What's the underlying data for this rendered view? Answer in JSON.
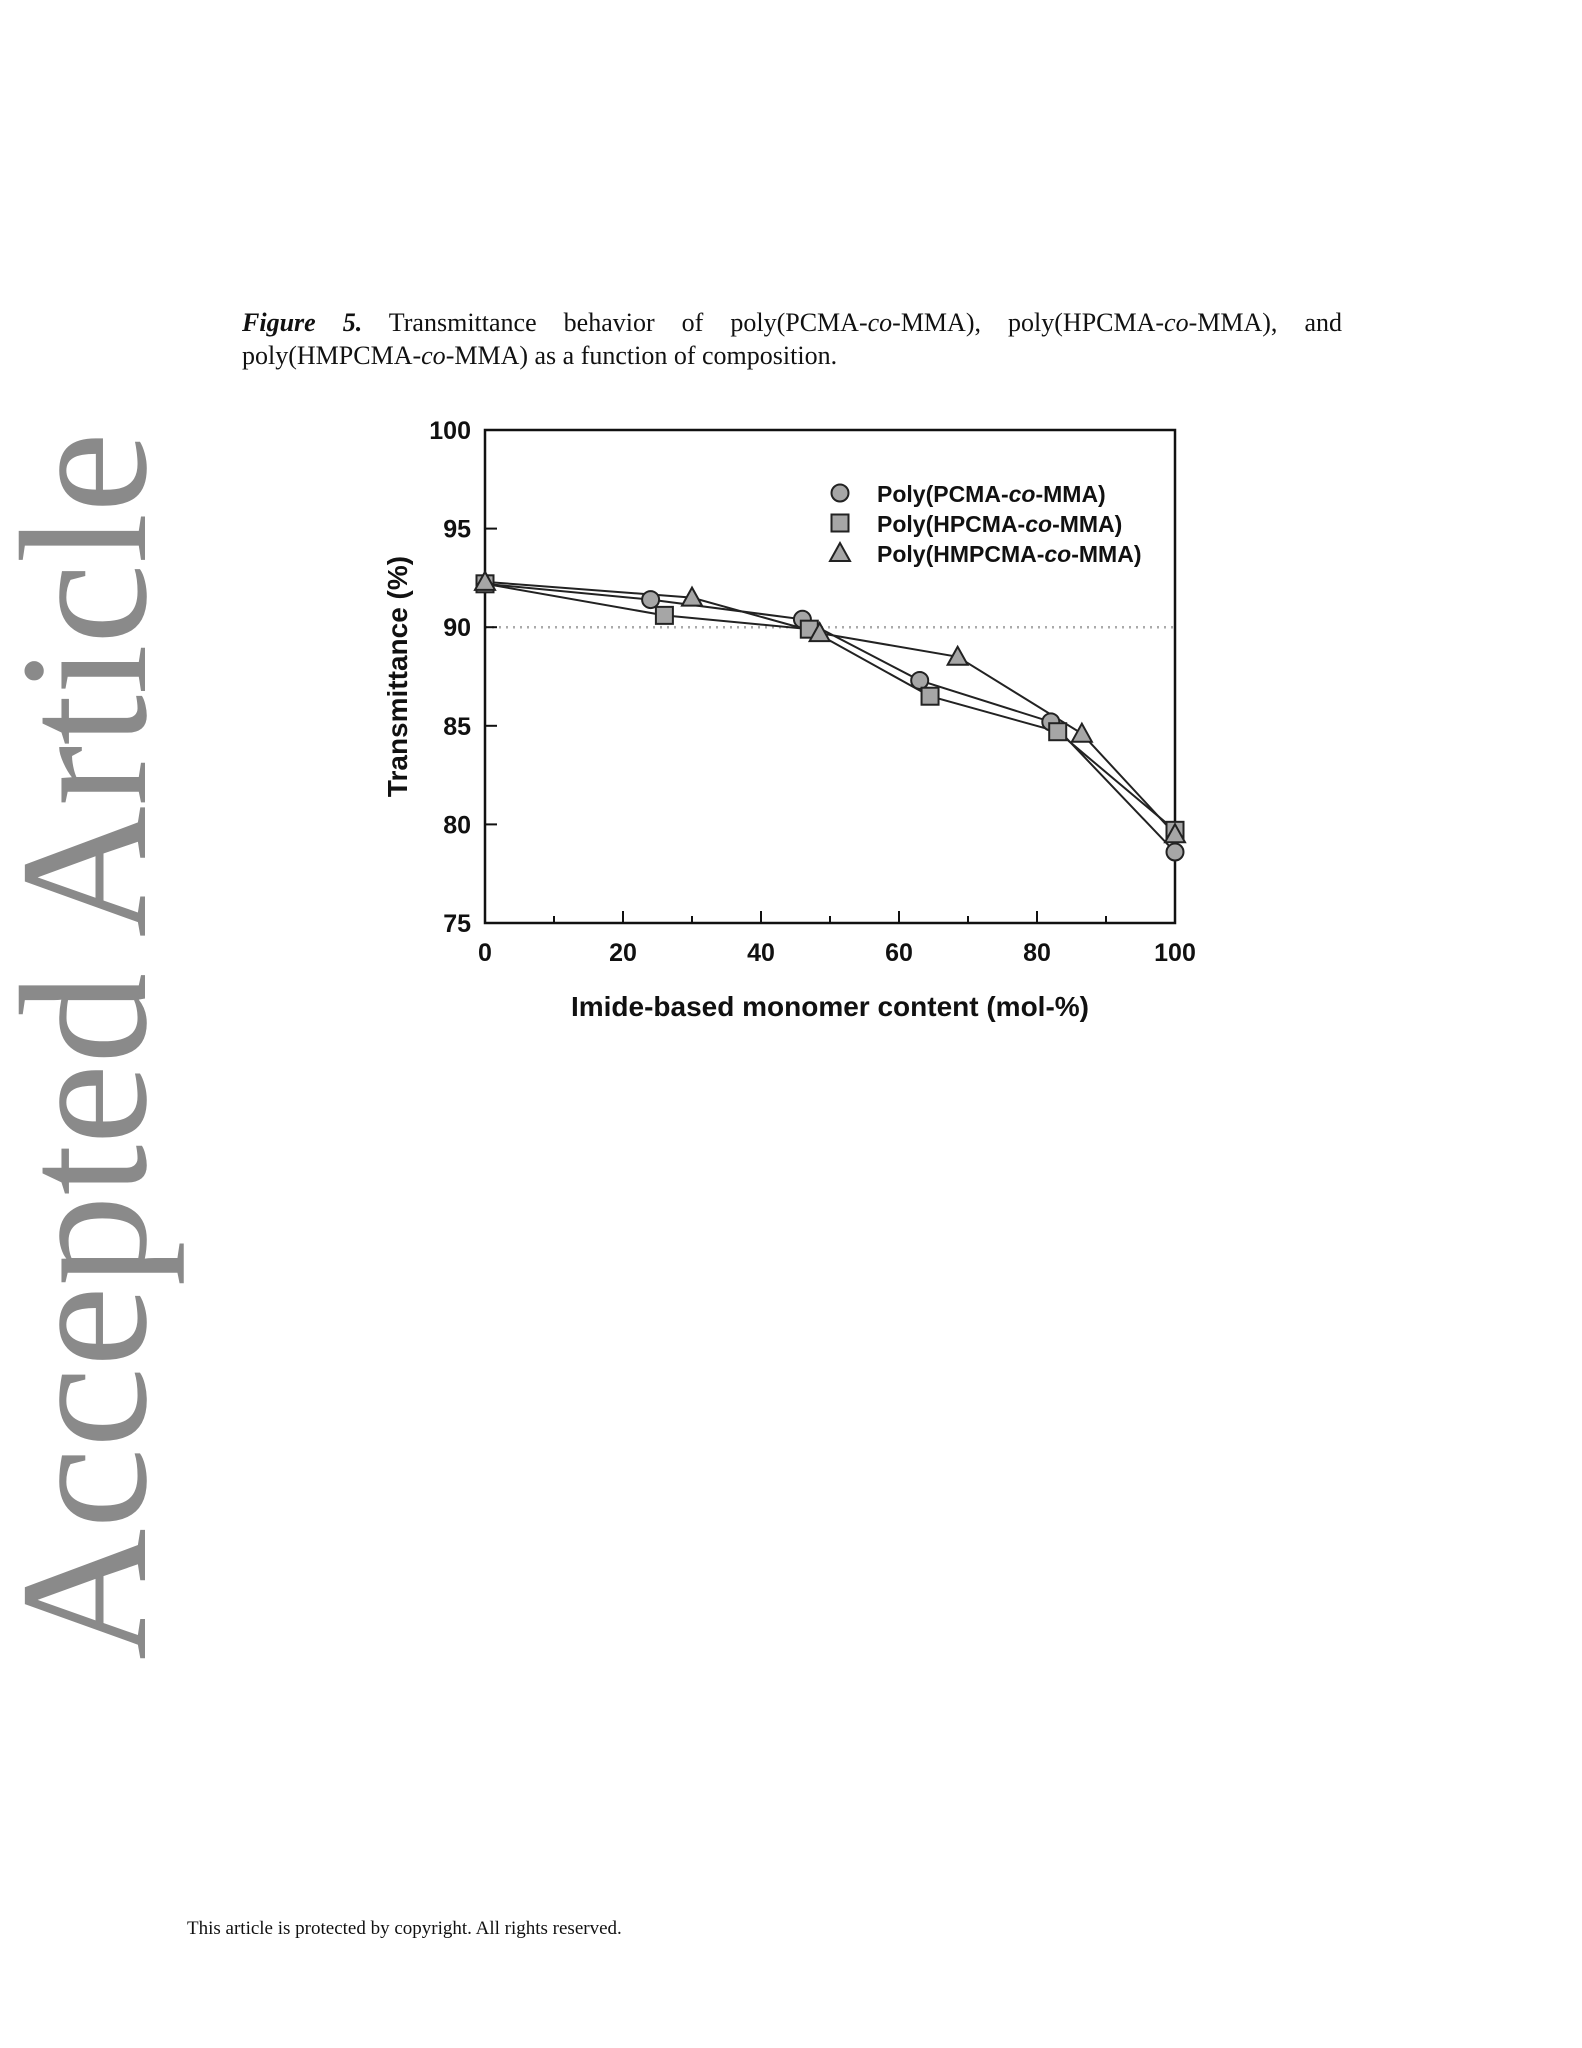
{
  "watermark": {
    "text": "Accepted Article",
    "color": "#8a8a8a"
  },
  "caption": {
    "label": "Figure 5.",
    "text_before_1": " Transmittance behavior of poly(PCMA-",
    "italic_1": "co",
    "text_after_1": "-MMA), poly(HPCMA-",
    "italic_2": "co",
    "text_after_2": "-MMA), and poly(HMPCMA-",
    "italic_3": "co",
    "text_after_3": "-MMA) as a function of composition."
  },
  "footer": {
    "text": "This article is protected by copyright. All rights reserved."
  },
  "chart_data": {
    "type": "line",
    "xlabel": "Imide-based monomer content (mol-%)",
    "ylabel": "Transmittance (%)",
    "xlim": [
      0,
      100
    ],
    "ylim": [
      75,
      100
    ],
    "xticks": [
      0,
      20,
      40,
      60,
      80,
      100
    ],
    "yticks": [
      75,
      80,
      85,
      90,
      95,
      100
    ],
    "reference_line": {
      "y": 90,
      "style": "dotted",
      "color": "#aaaaaa"
    },
    "legend_position": "top-right",
    "marker_fill": "#a6a6a6",
    "series": [
      {
        "name_prefix": "Poly(PCMA-",
        "name_italic": "co",
        "name_suffix": "-MMA)",
        "marker": "circle",
        "x": [
          0,
          24,
          46,
          63,
          82,
          100
        ],
        "y": [
          92.2,
          91.4,
          90.4,
          87.3,
          85.2,
          78.6
        ]
      },
      {
        "name_prefix": "Poly(HPCMA-",
        "name_italic": "co",
        "name_suffix": "-MMA)",
        "marker": "square",
        "x": [
          0,
          26,
          47,
          64.5,
          83,
          100
        ],
        "y": [
          92.2,
          90.6,
          89.9,
          86.5,
          84.7,
          79.7
        ]
      },
      {
        "name_prefix": "Poly(HMPCMA-",
        "name_italic": "co",
        "name_suffix": "-MMA)",
        "marker": "triangle",
        "x": [
          0,
          30,
          48.5,
          68.5,
          86.5,
          100
        ],
        "y": [
          92.3,
          91.5,
          89.7,
          88.5,
          84.6,
          79.5
        ]
      }
    ]
  }
}
